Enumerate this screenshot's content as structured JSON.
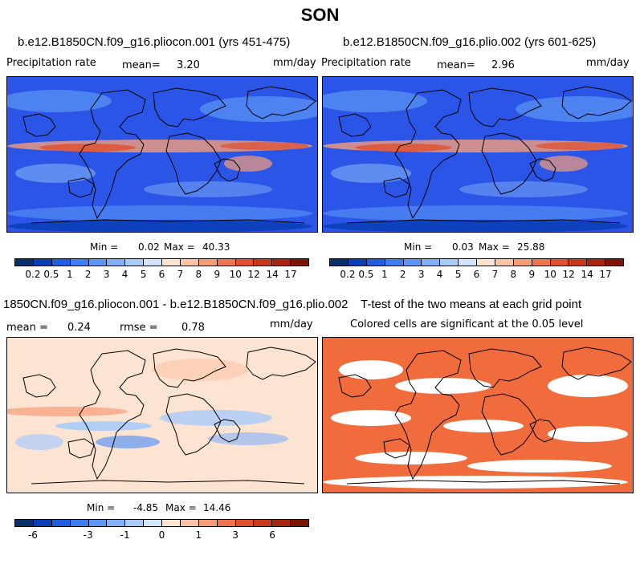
{
  "season": "SON",
  "panels": {
    "p1": {
      "title": "b.e12.B1850CN.f09_g16.pliocon.001 (yrs 451-475)",
      "variable": "Precipitation rate",
      "mean_label": "mean=",
      "mean": "3.20",
      "units": "mm/day",
      "min_label": "Min =",
      "min": "0.02",
      "max_label": "Max =",
      "max": "40.33"
    },
    "p2": {
      "title": "b.e12.B1850CN.f09_g16.plio.002 (yrs 601-625)",
      "variable": "Precipitation rate",
      "mean_label": "mean=",
      "mean": "2.96",
      "units": "mm/day",
      "min_label": "Min =",
      "min": "0.03",
      "max_label": "Max =",
      "max": "25.88"
    },
    "p3": {
      "title": "1850CN.f09_g16.pliocon.001 - b.e12.B1850CN.f09_g16.plio.002",
      "mean_label": "mean =",
      "mean": "0.24",
      "rmse_label": "rmse =",
      "rmse": "0.78",
      "units": "mm/day",
      "min_label": "Min =",
      "min": "-4.85",
      "max_label": "Max =",
      "max": "14.46"
    },
    "p4": {
      "title": "T-test of the two means at each grid point",
      "subtitle": "Colored cells are significant at the 0.05 level"
    }
  },
  "chart_data": [
    {
      "type": "heatmap",
      "title": "b.e12.B1850CN.f09_g16.pliocon.001 (yrs 451-475)",
      "units": "mm/day",
      "mean": 3.2,
      "min": 0.02,
      "max": 40.33,
      "colorbar_levels": [
        "0.2",
        "0.5",
        "1",
        "2",
        "3",
        "4",
        "5",
        "6",
        "7",
        "8",
        "9",
        "10",
        "12",
        "14",
        "17"
      ]
    },
    {
      "type": "heatmap",
      "title": "b.e12.B1850CN.f09_g16.plio.002 (yrs 601-625)",
      "units": "mm/day",
      "mean": 2.96,
      "min": 0.03,
      "max": 25.88,
      "colorbar_levels": [
        "0.2",
        "0.5",
        "1",
        "2",
        "3",
        "4",
        "5",
        "6",
        "7",
        "8",
        "9",
        "10",
        "12",
        "14",
        "17"
      ]
    },
    {
      "type": "heatmap",
      "title": "1850CN.f09_g16.pliocon.001 - b.e12.B1850CN.f09_g16.plio.002",
      "units": "mm/day",
      "mean": 0.24,
      "rmse": 0.78,
      "min": -4.85,
      "max": 14.46,
      "colorbar_levels": [
        "-6",
        "-3",
        "-1",
        "0",
        "1",
        "3",
        "6"
      ]
    },
    {
      "type": "heatmap",
      "title": "T-test of the two means at each grid point",
      "annotation": "Colored cells are significant at the 0.05 level",
      "significance_level": 0.05
    }
  ],
  "colorbars": {
    "precip": {
      "colors": [
        "#08306b",
        "#0a3fb8",
        "#1f5ee0",
        "#3d7df0",
        "#5c95f5",
        "#82b0f8",
        "#a9cbfb",
        "#d2e5fd",
        "#fde4d2",
        "#fbc4a6",
        "#f59c78",
        "#ee7550",
        "#e0502e",
        "#c93a1c",
        "#a8260f",
        "#7f1405"
      ],
      "labels": [
        "0.2",
        "0.5",
        "1",
        "2",
        "3",
        "4",
        "5",
        "6",
        "7",
        "8",
        "9",
        "10",
        "12",
        "14",
        "17"
      ]
    },
    "diff": {
      "colors": [
        "#08306b",
        "#0a3fb8",
        "#1f5ee0",
        "#3d7df0",
        "#5c95f5",
        "#82b0f8",
        "#a9cbfb",
        "#d2e5fd",
        "#fde4d2",
        "#fbc4a6",
        "#f59c78",
        "#ee7550",
        "#e0502e",
        "#c93a1c",
        "#a8260f",
        "#7f1405"
      ],
      "labels": [
        "-6",
        "-3",
        "-1",
        "0",
        "1",
        "3",
        "6"
      ],
      "label_bounds": [
        1,
        4,
        6,
        8,
        10,
        12,
        14
      ]
    }
  },
  "colors": {
    "ocean_blue": "#2a55e6",
    "rain_red": "#e8462a",
    "sig_orange": "#f06c3c",
    "diff_base": "#fde4d2"
  }
}
